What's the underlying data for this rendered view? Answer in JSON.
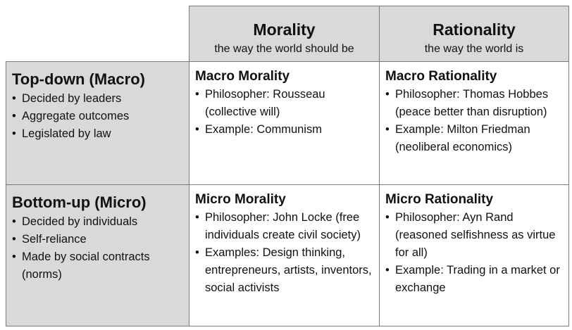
{
  "columns": [
    {
      "title": "Morality",
      "subtitle": "the way the world should be"
    },
    {
      "title": "Rationality",
      "subtitle": "the way the world is"
    }
  ],
  "rows": [
    {
      "title": "Top-down (Macro)",
      "bullets": [
        "Decided by leaders",
        "Aggregate outcomes",
        "Legislated by law"
      ]
    },
    {
      "title": "Bottom-up (Micro)",
      "bullets": [
        "Decided by individuals",
        "Self-reliance",
        "Made by social contracts (norms)"
      ]
    }
  ],
  "cells": {
    "macro_morality": {
      "title": "Macro Morality",
      "bullets": [
        "Philosopher: Rousseau (collective will)",
        "Example: Communism"
      ]
    },
    "macro_rationality": {
      "title": "Macro Rationality",
      "bullets": [
        "Philosopher: Thomas Hobbes (peace better than disruption)",
        "Example: Milton Friedman (neoliberal economics)"
      ]
    },
    "micro_morality": {
      "title": "Micro Morality",
      "bullets": [
        "Philosopher: John Locke (free individuals create civil society)",
        "Examples: Design thinking, entrepreneurs, artists, inventors, social activists"
      ]
    },
    "micro_rationality": {
      "title": "Micro Rationality",
      "bullets": [
        "Philosopher: Ayn Rand (reasoned selfishness as virtue for all)",
        "Example: Trading in a market or exchange"
      ]
    }
  }
}
